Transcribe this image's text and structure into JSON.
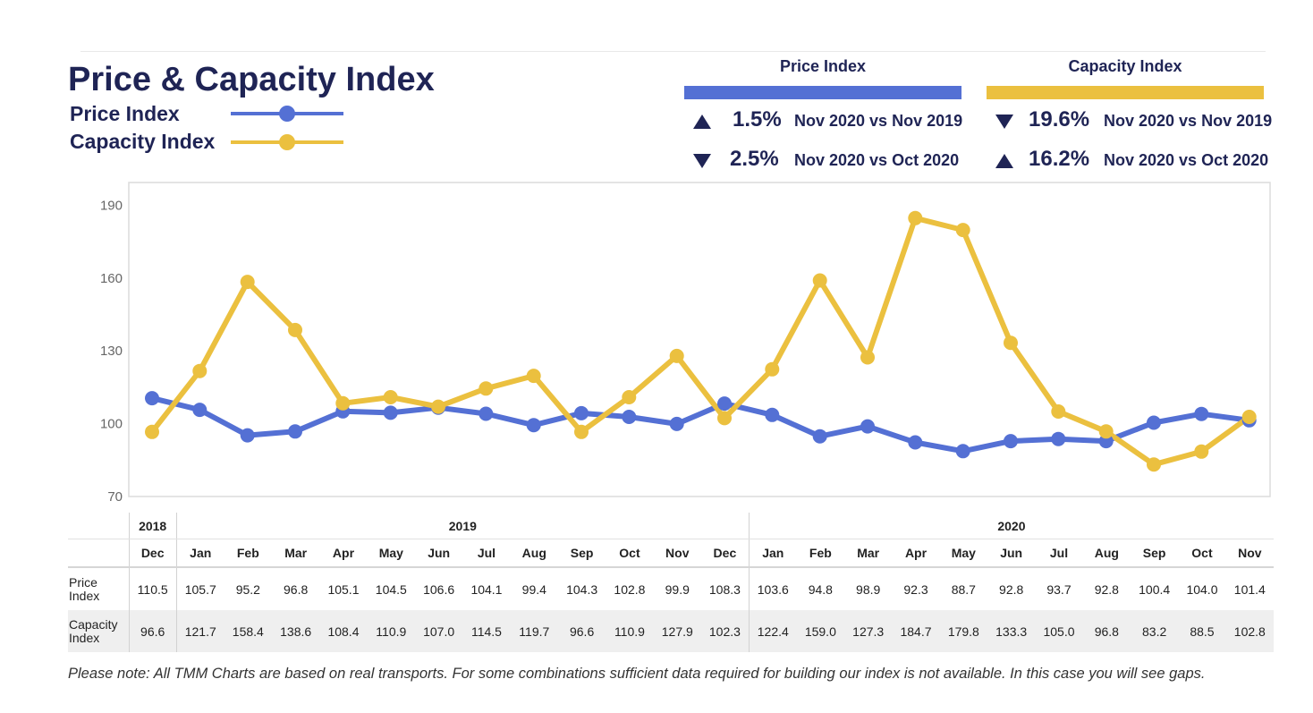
{
  "title": "Price & Capacity Index",
  "legend": [
    {
      "label": "Price Index",
      "color": "#5470d4"
    },
    {
      "label": "Capacity Index",
      "color": "#ebc03f"
    }
  ],
  "kpis": {
    "price": {
      "header": "Price Index",
      "color": "#5470d4",
      "rows": [
        {
          "direction": "up",
          "value": "1.5%",
          "desc": "Nov 2020 vs Nov 2019"
        },
        {
          "direction": "down",
          "value": "2.5%",
          "desc": "Nov 2020 vs Oct 2020"
        }
      ]
    },
    "capacity": {
      "header": "Capacity Index",
      "color": "#ebc03f",
      "rows": [
        {
          "direction": "down",
          "value": "19.6%",
          "desc": "Nov 2020 vs Nov 2019"
        },
        {
          "direction": "up",
          "value": "16.2%",
          "desc": "Nov 2020 vs Oct 2020"
        }
      ]
    }
  },
  "chart_data": {
    "type": "line",
    "title": "Price & Capacity Index",
    "xlabel": "",
    "ylabel": "",
    "ylim": [
      70,
      198
    ],
    "yticks": [
      190,
      160,
      130,
      100,
      70
    ],
    "grid": false,
    "legend_position": "top-left",
    "years": [
      {
        "label": "2018",
        "span": 1
      },
      {
        "label": "2019",
        "span": 12
      },
      {
        "label": "2020",
        "span": 11
      }
    ],
    "categories": [
      "Dec",
      "Jan",
      "Feb",
      "Mar",
      "Apr",
      "May",
      "Jun",
      "Jul",
      "Aug",
      "Sep",
      "Oct",
      "Nov",
      "Dec",
      "Jan",
      "Feb",
      "Mar",
      "Apr",
      "May",
      "Jun",
      "Jul",
      "Aug",
      "Sep",
      "Oct",
      "Nov"
    ],
    "series": [
      {
        "name": "Price Index",
        "row_label": "Price Index",
        "color": "#5470d4",
        "values": [
          110.5,
          105.7,
          95.2,
          96.8,
          105.1,
          104.5,
          106.6,
          104.1,
          99.4,
          104.3,
          102.8,
          99.9,
          108.3,
          103.6,
          94.8,
          98.9,
          92.3,
          88.7,
          92.8,
          93.7,
          92.8,
          100.4,
          104.0,
          101.4
        ],
        "labels": [
          "110.5",
          "105.7",
          "95.2",
          "96.8",
          "105.1",
          "104.5",
          "106.6",
          "104.1",
          "99.4",
          "104.3",
          "102.8",
          "99.9",
          "108.3",
          "103.6",
          "94.8",
          "98.9",
          "92.3",
          "88.7",
          "92.8",
          "93.7",
          "92.8",
          "100.4",
          "104.0",
          "101.4"
        ]
      },
      {
        "name": "Capacity Index",
        "row_label": "Capacity Index",
        "color": "#ebc03f",
        "values": [
          96.6,
          121.7,
          158.4,
          138.6,
          108.4,
          110.9,
          107.0,
          114.5,
          119.7,
          96.6,
          110.9,
          127.9,
          102.3,
          122.4,
          159.0,
          127.3,
          184.7,
          179.8,
          133.3,
          105.0,
          96.8,
          83.2,
          88.5,
          102.8
        ],
        "labels": [
          "96.6",
          "121.7",
          "158.4",
          "138.6",
          "108.4",
          "110.9",
          "107.0",
          "114.5",
          "119.7",
          "96.6",
          "110.9",
          "127.9",
          "102.3",
          "122.4",
          "159.0",
          "127.3",
          "184.7",
          "179.8",
          "133.3",
          "105.0",
          "96.8",
          "83.2",
          "88.5",
          "102.8"
        ]
      }
    ]
  },
  "note": "Please note: All TMM Charts are based on real transports. For some combinations sufficient data required for building our index is not available. In this case you will see gaps."
}
